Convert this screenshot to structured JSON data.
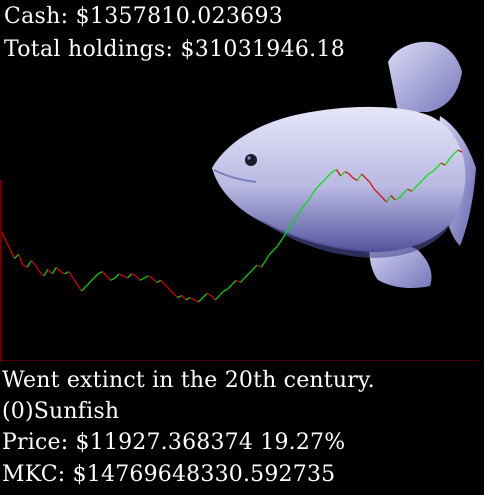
{
  "hud": {
    "cash_label": "Cash: $1357810.023693",
    "holdings_label": "Total holdings: $31031946.18"
  },
  "stock": {
    "fact": "Went extinct in the 20th century.",
    "name": "(0)Sunfish",
    "price_label": "Price: $11927.368374 19.27%",
    "mkc_label": "MKC: $14769648330.592735",
    "sprite_icon": "fish-sprite",
    "colors": {
      "up": "#00e000",
      "down": "#e00000",
      "fish_body": "#c9c9ea",
      "fish_shadow": "#5a5aa8",
      "background": "#000000"
    }
  },
  "chart_data": {
    "type": "line",
    "note_series_up_color": "#00e000",
    "note_series_down_color": "#e00000",
    "y_values": [
      46,
      42,
      38,
      34,
      36,
      31,
      30,
      33,
      31,
      28,
      26,
      29,
      27,
      30,
      28,
      27,
      28,
      25,
      22,
      19,
      21,
      23,
      25,
      27,
      28,
      26,
      24,
      25,
      27,
      26,
      25,
      27,
      26,
      24,
      25,
      26,
      25,
      23,
      24,
      22,
      20,
      18,
      16,
      17,
      15,
      16,
      15,
      14,
      16,
      18,
      17,
      15,
      17,
      19,
      20,
      22,
      24,
      23,
      25,
      27,
      29,
      31,
      30,
      33,
      36,
      38,
      40,
      43,
      46,
      49,
      52,
      55,
      58,
      60,
      63,
      66,
      68,
      70,
      72,
      74,
      75,
      72,
      74,
      73,
      71,
      70,
      73,
      71,
      69,
      66,
      64,
      62,
      60,
      63,
      61,
      62,
      64,
      66,
      65,
      67,
      69,
      71,
      73,
      74,
      76,
      78,
      77,
      80,
      82,
      84,
      83
    ]
  }
}
